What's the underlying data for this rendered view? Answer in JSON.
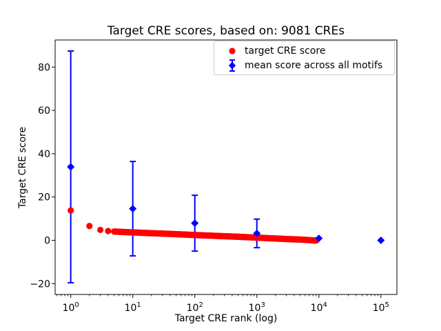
{
  "figure": {
    "background_color": "#ffffff"
  },
  "chart_data": {
    "type": "scatter",
    "title": "Target CRE scores, based on: 9081 CREs",
    "xlabel": "Target CRE rank (log)",
    "ylabel": "Target CRE score",
    "x_scale": "log",
    "xlim": [
      0.56,
      181000
    ],
    "ylim": [
      -25,
      92.5
    ],
    "x_ticks_exponents": [
      0,
      1,
      2,
      3,
      4,
      5
    ],
    "x_tick_labels": [
      "10⁰",
      "10¹",
      "10²",
      "10³",
      "10⁴",
      "10⁵"
    ],
    "y_ticks": [
      -20,
      0,
      20,
      40,
      60,
      80
    ],
    "grid": false,
    "legend_position": "upper right",
    "series": [
      {
        "name": "target CRE score",
        "marker": "circle",
        "color": "#ff0000",
        "n_points_depicted": 9081,
        "note": "9081 points at ranks 1..9081 rendered as a dense band; sampled values below",
        "x": [
          1,
          2,
          3,
          4,
          5,
          7,
          10,
          15,
          20,
          30,
          50,
          70,
          100,
          150,
          200,
          300,
          500,
          700,
          1000,
          1500,
          2000,
          3000,
          5000,
          7000,
          9081
        ],
        "y": [
          13.8,
          6.6,
          4.8,
          4.3,
          4.05,
          3.85,
          3.65,
          3.45,
          3.3,
          3.1,
          2.85,
          2.65,
          2.45,
          2.25,
          2.1,
          1.9,
          1.65,
          1.45,
          1.25,
          1.0,
          0.85,
          0.6,
          0.35,
          0.1,
          -0.1
        ]
      },
      {
        "name": "mean score across all motifs",
        "marker": "diamond",
        "color": "#0000ff",
        "x": [
          1,
          10,
          100,
          1000,
          10000,
          100000
        ],
        "y": [
          33.9,
          14.6,
          7.9,
          3.2,
          0.9,
          0.0
        ],
        "yerr": [
          53.5,
          21.8,
          12.9,
          6.6,
          0,
          0
        ]
      }
    ]
  }
}
